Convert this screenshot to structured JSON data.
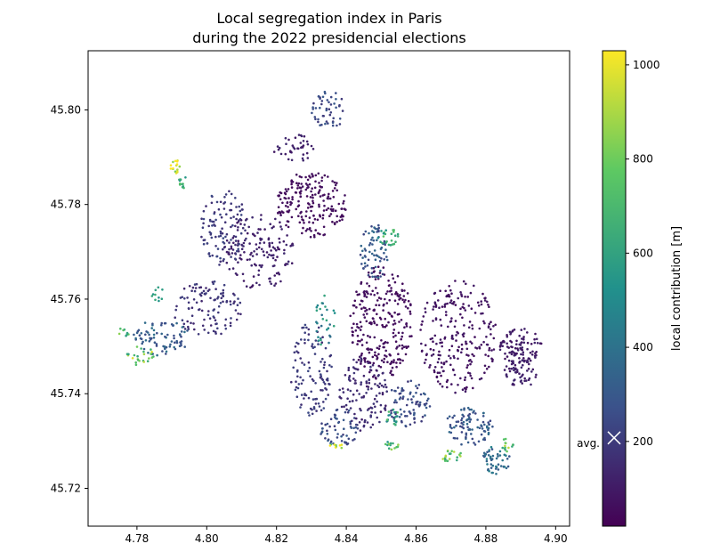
{
  "title_lines": [
    "Local segregation index in Paris",
    "during the 2022 presidencial elections"
  ],
  "chart_data": {
    "type": "scatter",
    "title": "Local segregation index in Paris\nduring the 2022 presidencial elections",
    "xlabel": "",
    "ylabel": "",
    "xlim": [
      4.766,
      4.904
    ],
    "ylim": [
      45.712,
      45.8125
    ],
    "x_ticks": [
      4.78,
      4.8,
      4.82,
      4.84,
      4.86,
      4.88,
      4.9
    ],
    "x_tick_labels": [
      "4.78",
      "4.80",
      "4.82",
      "4.84",
      "4.86",
      "4.88",
      "4.90"
    ],
    "y_ticks": [
      45.72,
      45.74,
      45.76,
      45.78,
      45.8
    ],
    "y_tick_labels": [
      "45.72",
      "45.74",
      "45.76",
      "45.78",
      "45.80"
    ],
    "grid": false,
    "colormap": "viridis",
    "colorbar": {
      "label": "local contribution [m]",
      "range": [
        20,
        1030
      ],
      "ticks": [
        200,
        400,
        600,
        800,
        1000
      ],
      "tick_labels": [
        "200",
        "400",
        "600",
        "800",
        "1000"
      ],
      "average_marker": {
        "label": "avg.",
        "value": 200
      }
    },
    "clusters": [
      {
        "x": 4.85,
        "y": 45.755,
        "rx": 0.009,
        "ry": 0.012,
        "value": 60,
        "n": 260
      },
      {
        "x": 4.872,
        "y": 45.752,
        "rx": 0.011,
        "ry": 0.012,
        "value": 80,
        "n": 240
      },
      {
        "x": 4.89,
        "y": 45.75,
        "rx": 0.006,
        "ry": 0.004,
        "value": 100,
        "n": 90
      },
      {
        "x": 4.83,
        "y": 45.78,
        "rx": 0.01,
        "ry": 0.007,
        "value": 60,
        "n": 200
      },
      {
        "x": 4.815,
        "y": 45.77,
        "rx": 0.01,
        "ry": 0.008,
        "value": 120,
        "n": 150
      },
      {
        "x": 4.805,
        "y": 45.775,
        "rx": 0.007,
        "ry": 0.008,
        "value": 200,
        "n": 110
      },
      {
        "x": 4.8,
        "y": 45.758,
        "rx": 0.01,
        "ry": 0.006,
        "value": 180,
        "n": 110
      },
      {
        "x": 4.787,
        "y": 45.752,
        "rx": 0.008,
        "ry": 0.004,
        "value": 320,
        "n": 80
      },
      {
        "x": 4.83,
        "y": 45.745,
        "rx": 0.006,
        "ry": 0.01,
        "value": 200,
        "n": 110
      },
      {
        "x": 4.838,
        "y": 45.733,
        "rx": 0.006,
        "ry": 0.004,
        "value": 250,
        "n": 60
      },
      {
        "x": 4.845,
        "y": 45.74,
        "rx": 0.007,
        "ry": 0.008,
        "value": 150,
        "n": 120
      },
      {
        "x": 4.858,
        "y": 45.738,
        "rx": 0.006,
        "ry": 0.005,
        "value": 250,
        "n": 80
      },
      {
        "x": 4.875,
        "y": 45.733,
        "rx": 0.007,
        "ry": 0.004,
        "value": 300,
        "n": 90
      },
      {
        "x": 4.883,
        "y": 45.726,
        "rx": 0.004,
        "ry": 0.003,
        "value": 380,
        "n": 50
      },
      {
        "x": 4.848,
        "y": 45.77,
        "rx": 0.004,
        "ry": 0.006,
        "value": 300,
        "n": 70
      },
      {
        "x": 4.835,
        "y": 45.8,
        "rx": 0.005,
        "ry": 0.004,
        "value": 250,
        "n": 50
      },
      {
        "x": 4.825,
        "y": 45.792,
        "rx": 0.006,
        "ry": 0.003,
        "value": 120,
        "n": 40
      },
      {
        "x": 4.852,
        "y": 45.773,
        "rx": 0.003,
        "ry": 0.002,
        "value": 640,
        "n": 25
      },
      {
        "x": 4.834,
        "y": 45.755,
        "rx": 0.003,
        "ry": 0.006,
        "value": 500,
        "n": 30
      },
      {
        "x": 4.853,
        "y": 45.735,
        "rx": 0.002,
        "ry": 0.002,
        "value": 620,
        "n": 18
      },
      {
        "x": 4.853,
        "y": 45.729,
        "rx": 0.002,
        "ry": 0.001,
        "value": 720,
        "n": 14
      },
      {
        "x": 4.87,
        "y": 45.727,
        "rx": 0.003,
        "ry": 0.0015,
        "value": 760,
        "n": 20
      },
      {
        "x": 4.886,
        "y": 45.729,
        "rx": 0.002,
        "ry": 0.0015,
        "value": 780,
        "n": 14
      },
      {
        "x": 4.837,
        "y": 45.729,
        "rx": 0.002,
        "ry": 0.001,
        "value": 880,
        "n": 10
      },
      {
        "x": 4.791,
        "y": 45.788,
        "rx": 0.0015,
        "ry": 0.0015,
        "value": 1000,
        "n": 16
      },
      {
        "x": 4.793,
        "y": 45.785,
        "rx": 0.001,
        "ry": 0.002,
        "value": 640,
        "n": 12
      },
      {
        "x": 4.781,
        "y": 45.748,
        "rx": 0.004,
        "ry": 0.002,
        "value": 800,
        "n": 24
      },
      {
        "x": 4.786,
        "y": 45.761,
        "rx": 0.002,
        "ry": 0.0015,
        "value": 600,
        "n": 10
      },
      {
        "x": 4.776,
        "y": 45.753,
        "rx": 0.002,
        "ry": 0.001,
        "value": 680,
        "n": 8
      },
      {
        "x": 4.89,
        "y": 45.745,
        "rx": 0.005,
        "ry": 0.004,
        "value": 120,
        "n": 60
      }
    ]
  }
}
